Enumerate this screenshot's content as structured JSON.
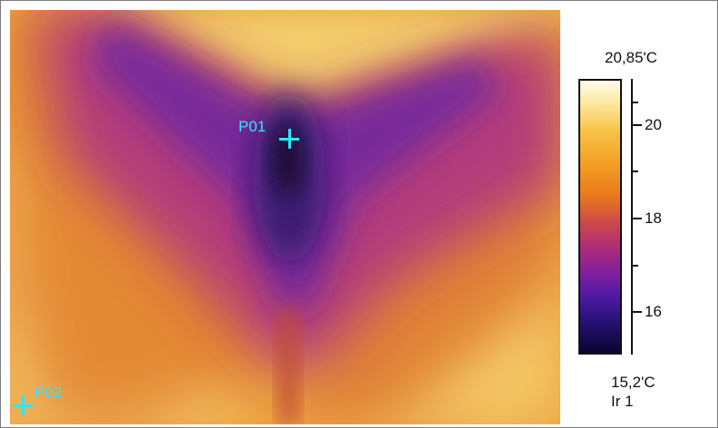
{
  "markers": [
    {
      "label": "P01"
    },
    {
      "label": "P02"
    }
  ],
  "scale": {
    "max_label": "20,85'C",
    "min_label": "15,2'C",
    "ticks": [
      "20",
      "18",
      "16"
    ],
    "source_label": "Ir 1"
  },
  "colors": {
    "marker": "#2ee8ff",
    "hot": "#fdfde8",
    "warm": "#f4a126",
    "mid": "#ac2a7c",
    "cold": "#0b0430"
  }
}
